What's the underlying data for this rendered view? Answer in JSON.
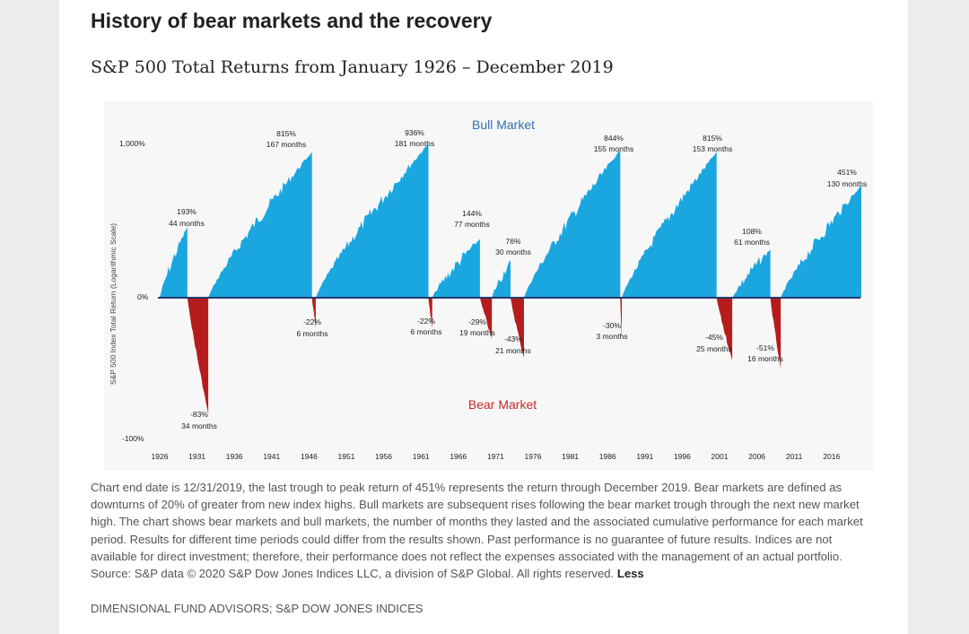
{
  "page": {
    "title": "History of bear markets and the recovery",
    "subtitle": "S&P 500 Total Returns from January 1926 – December 2019",
    "caption": "Chart end date is 12/31/2019, the last trough to peak return of 451% represents the return through December 2019. Bear markets are defined as downturns of 20% of greater from new index highs. Bull markets are subsequent rises following the bear market trough through the next new market high. The chart shows bear markets and bull markets, the number of months they lasted and the associated cumulative performance for each market period. Results for different time periods could differ from the results shown. Past performance is no guarantee of future results. Indices are not available for direct investment; therefore, their performance does not reflect the expenses associated with the management of an actual portfolio. Source: S&P data © 2020 S&P Dow Jones Indices LLC, a division of S&P Global. All rights reserved.",
    "less_label": "Less",
    "source": "DIMENSIONAL FUND ADVISORS; S&P DOW JONES INDICES"
  },
  "chart_data": {
    "type": "area",
    "title": "",
    "ylabel": "S&P 500 Index Total Return (Logarithmic Scale)",
    "yscale": "log",
    "y_ticks": [
      {
        "value": 1000,
        "label": "1,000%"
      },
      {
        "value": 0,
        "label": "0%"
      },
      {
        "value": -100,
        "label": "-100%"
      }
    ],
    "x_ticks": [
      "1926",
      "1931",
      "1936",
      "1941",
      "1946",
      "1951",
      "1956",
      "1961",
      "1966",
      "1971",
      "1976",
      "1981",
      "1986",
      "1991",
      "1996",
      "2001",
      "2006",
      "2011",
      "2016"
    ],
    "bull_label": "Bull Market",
    "bear_label": "Bear Market",
    "colors": {
      "bull": "#1aa7e0",
      "bear": "#b71c1c"
    },
    "periods": [
      {
        "type": "bull",
        "value": 193,
        "value_label": "193%",
        "duration_label": "44 months"
      },
      {
        "type": "bear",
        "value": -83,
        "value_label": "-83%",
        "duration_label": "34 months"
      },
      {
        "type": "bull",
        "value": 815,
        "value_label": "815%",
        "duration_label": "167 months"
      },
      {
        "type": "bear",
        "value": -22,
        "value_label": "-22%",
        "duration_label": "6 months"
      },
      {
        "type": "bull",
        "value": 936,
        "value_label": "936%",
        "duration_label": "181 months"
      },
      {
        "type": "bear",
        "value": -22,
        "value_label": "-22%",
        "duration_label": "6 months"
      },
      {
        "type": "bull",
        "value": 144,
        "value_label": "144%",
        "duration_label": "77 months"
      },
      {
        "type": "bear",
        "value": -29,
        "value_label": "-29%",
        "duration_label": "19 months"
      },
      {
        "type": "bull",
        "value": 76,
        "value_label": "76%",
        "duration_label": "30 months"
      },
      {
        "type": "bear",
        "value": -43,
        "value_label": "-43%",
        "duration_label": "21 months"
      },
      {
        "type": "bull",
        "value": 844,
        "value_label": "844%",
        "duration_label": "155 months"
      },
      {
        "type": "bear",
        "value": -30,
        "value_label": "-30%",
        "duration_label": "3 months"
      },
      {
        "type": "bull",
        "value": 815,
        "value_label": "815%",
        "duration_label": "153 months"
      },
      {
        "type": "bear",
        "value": -45,
        "value_label": "-45%",
        "duration_label": "25 months"
      },
      {
        "type": "bull",
        "value": 108,
        "value_label": "108%",
        "duration_label": "61 months"
      },
      {
        "type": "bear",
        "value": -51,
        "value_label": "-51%",
        "duration_label": "16 months"
      },
      {
        "type": "bull",
        "value": 451,
        "value_label": "451%",
        "duration_label": "130 months"
      }
    ]
  }
}
